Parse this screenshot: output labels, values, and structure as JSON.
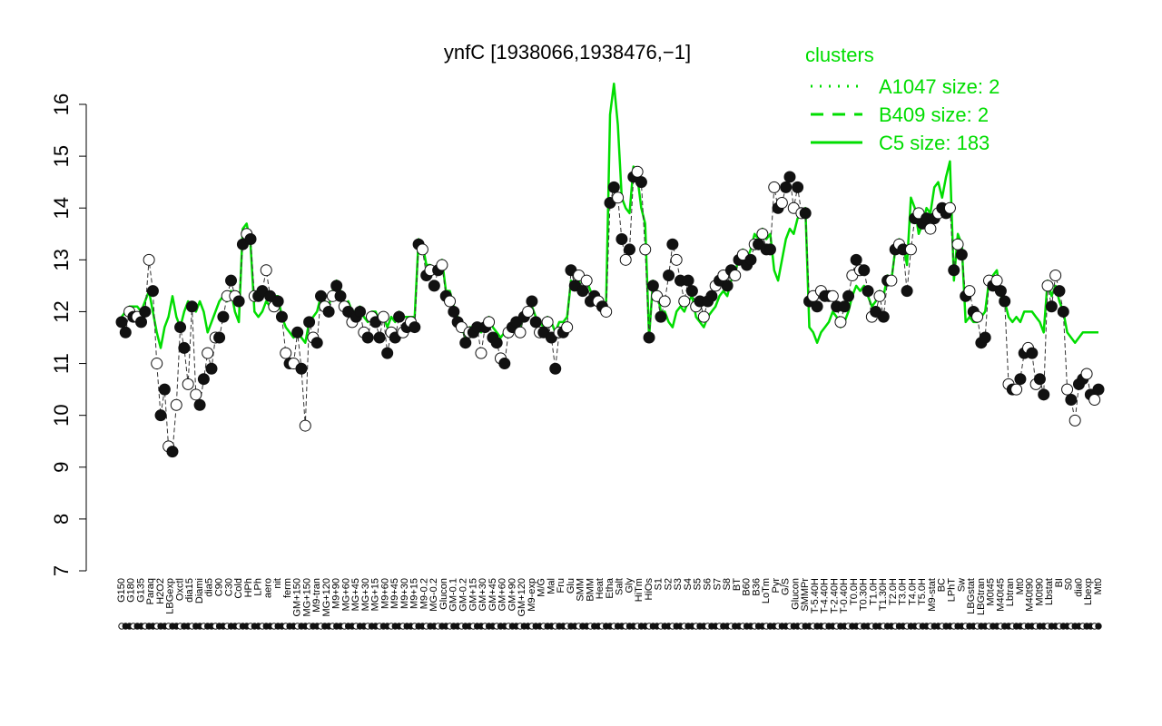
{
  "chart_data": {
    "type": "line",
    "title": "ynfC [1938066,1938476,−1]",
    "ylim": [
      7,
      16.4
    ],
    "yticks": [
      7,
      8,
      9,
      10,
      11,
      12,
      13,
      14,
      15,
      16
    ],
    "x_tick_labels": [
      "G150",
      "G180",
      "G135",
      "Paraq",
      "H2O2",
      "LBGexp",
      "Oxctl",
      "dia15",
      "Diami",
      "dia5",
      "C90",
      "C30",
      "Cold",
      "HPh",
      "LPh",
      "aero",
      "nit",
      "ferm",
      "GM+150",
      "MG+150",
      "M9-tran",
      "MG+120",
      "M9+90",
      "MG+60",
      "MG+45",
      "MG+30",
      "MG+15",
      "M9+60",
      "M9+45",
      "M9+30",
      "M9+15",
      "M9-0.2",
      "MG-0.2",
      "Glucon",
      "GM-0.1",
      "GM-0.2",
      "GM+15",
      "GM+30",
      "GM+45",
      "GM+60",
      "GM+90",
      "GM+120",
      "M9-exp",
      "M/G",
      "Mal",
      "Fru",
      "Glu",
      "SMM",
      "BMM",
      "Heat",
      "Etha",
      "Salt",
      "Gly",
      "HiTm",
      "HiOs",
      "S1",
      "S2",
      "S3",
      "S4",
      "S5",
      "S6",
      "S7",
      "S8",
      "BT",
      "B60",
      "B36",
      "LoTm",
      "Pyr",
      "G/S",
      "Glucon",
      "SMMPr",
      "T-5.40H",
      "T-4.40H",
      "T-2.40H",
      "T-0.40H",
      "T0.0H",
      "T0.30H",
      "T1.0H",
      "T1.30H",
      "T2.0H",
      "T3.0H",
      "T4.0H",
      "T5.0H",
      "M9-stat",
      "BC",
      "LPhT",
      "Sw",
      "LBGstat",
      "LBGtran",
      "M0t45",
      "M40t45",
      "Lbtran",
      "Mt0",
      "M40t90",
      "M0t90",
      "Lbstat",
      "BI",
      "S0",
      "dia0",
      "Lbexp",
      "Mt0"
    ],
    "legend": {
      "title": "clusters",
      "placement": "top-right",
      "entries": [
        {
          "label": "A1047 size: 2",
          "style": "dotted"
        },
        {
          "label": "B409 size: 2",
          "style": "dashed"
        },
        {
          "label": "C5 size: 183",
          "style": "solid"
        }
      ]
    },
    "series": [
      {
        "role": "highlight",
        "style": "dashed",
        "color": "#333333",
        "values": [
          11.8,
          11.6,
          12.0,
          11.9,
          11.9,
          11.8,
          12.0,
          13.0,
          12.4,
          11.0,
          10.0,
          10.5,
          9.4,
          9.3,
          10.2,
          11.7,
          11.3,
          10.6,
          12.1,
          10.4,
          10.2,
          10.7,
          11.2,
          10.9,
          11.5,
          11.5,
          11.9,
          12.3,
          12.6,
          12.3,
          12.2,
          13.3,
          13.5,
          13.4,
          12.3,
          12.3,
          12.4,
          12.8,
          12.3,
          12.1,
          12.2,
          11.9,
          11.2,
          11.0,
          11.0,
          11.6,
          10.9,
          9.8,
          11.8,
          11.5,
          11.4,
          12.3,
          12.1,
          12.0,
          12.3,
          12.5,
          12.3,
          12.1,
          12.0,
          11.8,
          11.9,
          12.0,
          11.6,
          11.5,
          11.9,
          11.8,
          11.5,
          11.9,
          11.2,
          11.6,
          11.5,
          11.9,
          11.6,
          11.7,
          11.8,
          11.7,
          13.3,
          13.2,
          12.7,
          12.8,
          12.5,
          12.8,
          12.9,
          12.3,
          12.2,
          12.0,
          11.8,
          11.7,
          11.4,
          11.6,
          11.6,
          11.7,
          11.2,
          11.7,
          11.8,
          11.5,
          11.4,
          11.1,
          11.0,
          11.6,
          11.7,
          11.8,
          11.6,
          11.9,
          12.0,
          12.2,
          11.8,
          11.6,
          11.6,
          11.8,
          11.5,
          10.9,
          11.6,
          11.6,
          11.7,
          12.8,
          12.5,
          12.7,
          12.4,
          12.6,
          12.2,
          12.3,
          12.2,
          12.1,
          12.0,
          14.1,
          14.4,
          14.2,
          13.4,
          13.0,
          13.2,
          14.6,
          14.7,
          14.5,
          13.2,
          11.5,
          12.5,
          12.3,
          11.9,
          12.2,
          12.7,
          13.3,
          13.0,
          12.6,
          12.2,
          12.6,
          12.4,
          12.1,
          12.2,
          11.9,
          12.2,
          12.3,
          12.5,
          12.6,
          12.7,
          12.5,
          12.8,
          12.7,
          13.0,
          13.1,
          12.9,
          13.0,
          13.3,
          13.3,
          13.5,
          13.2,
          13.2,
          14.4,
          14.0,
          14.1,
          14.4,
          14.6,
          14.0,
          14.4,
          13.9,
          13.9,
          12.2,
          12.3,
          12.1,
          12.4,
          12.3,
          12.3,
          12.3,
          12.1,
          11.8,
          12.1,
          12.3,
          12.7,
          13.0,
          12.8,
          12.8,
          12.4,
          11.9,
          12.0,
          12.3,
          11.9,
          12.6,
          12.6,
          13.2,
          13.3,
          13.2,
          12.4,
          13.2,
          13.8,
          13.9,
          13.7,
          13.8,
          13.6,
          13.8,
          13.9,
          14.0,
          13.9,
          14.0,
          12.8,
          13.3,
          13.1,
          12.3,
          12.4,
          12.0,
          11.9,
          11.4,
          11.5,
          12.6,
          12.5,
          12.6,
          12.4,
          12.2,
          10.6,
          10.5,
          10.5,
          10.7,
          11.2,
          11.3,
          11.2,
          10.6,
          10.7,
          10.4,
          12.5,
          12.1,
          12.7,
          12.4,
          12.0,
          10.5,
          10.3,
          9.9,
          10.6,
          10.7,
          10.8,
          10.4,
          10.3,
          10.5
        ]
      },
      {
        "role": "cluster",
        "name": "C5 size: 183",
        "style": "solid",
        "color": "#00dd00",
        "values": [
          11.9,
          12.0,
          12.1,
          12.1,
          12.1,
          12.0,
          12.2,
          12.4,
          12.0,
          11.6,
          11.3,
          11.7,
          11.9,
          12.3,
          11.9,
          11.7,
          12.0,
          12.2,
          12.1,
          12.0,
          12.2,
          12.0,
          11.6,
          11.8,
          12.0,
          12.2,
          12.3,
          12.2,
          12.4,
          12.0,
          11.8,
          13.6,
          13.7,
          13.3,
          12.0,
          11.9,
          12.0,
          12.2,
          12.1,
          12.3,
          12.3,
          11.9,
          11.7,
          11.6,
          11.5,
          11.6,
          11.5,
          11.4,
          11.8,
          11.9,
          12.0,
          12.3,
          12.2,
          12.1,
          12.4,
          12.6,
          12.4,
          12.1,
          12.2,
          12.0,
          12.0,
          12.1,
          11.9,
          11.8,
          12.0,
          12.0,
          11.8,
          11.9,
          11.7,
          11.9,
          11.8,
          12.0,
          11.9,
          11.9,
          11.9,
          11.9,
          13.4,
          13.3,
          12.9,
          12.9,
          12.8,
          12.9,
          13.0,
          12.4,
          12.4,
          12.1,
          11.9,
          11.7,
          11.5,
          11.7,
          11.7,
          11.7,
          11.6,
          11.8,
          11.9,
          11.7,
          11.6,
          11.5,
          11.6,
          11.7,
          11.8,
          11.8,
          11.7,
          11.9,
          12.0,
          12.1,
          11.9,
          11.8,
          11.7,
          11.9,
          11.8,
          11.6,
          11.8,
          11.8,
          11.9,
          12.6,
          12.5,
          12.6,
          12.4,
          12.6,
          12.4,
          12.3,
          12.2,
          12.1,
          12.2,
          15.8,
          16.4,
          15.6,
          14.2,
          14.0,
          13.9,
          14.8,
          14.6,
          14.0,
          13.7,
          11.5,
          12.6,
          12.4,
          12.0,
          12.0,
          11.8,
          11.7,
          12.0,
          12.1,
          12.0,
          12.2,
          12.3,
          11.9,
          11.8,
          11.7,
          11.9,
          12.0,
          12.1,
          12.3,
          12.4,
          12.3,
          12.6,
          12.7,
          13.1,
          13.2,
          13.0,
          13.2,
          13.5,
          13.4,
          13.6,
          13.4,
          13.5,
          12.8,
          12.6,
          13.0,
          13.4,
          13.6,
          13.5,
          13.8,
          13.9,
          14.0,
          11.7,
          11.6,
          11.4,
          11.6,
          11.7,
          11.8,
          12.0,
          11.9,
          11.7,
          11.8,
          12.0,
          12.3,
          12.5,
          12.4,
          12.5,
          12.3,
          12.1,
          12.2,
          12.4,
          12.3,
          12.7,
          12.6,
          13.2,
          13.4,
          13.3,
          12.9,
          14.2,
          14.0,
          13.5,
          13.7,
          14.0,
          13.9,
          14.4,
          14.5,
          14.2,
          14.6,
          14.9,
          12.6,
          13.5,
          13.3,
          11.8,
          11.9,
          11.8,
          11.8,
          11.9,
          12.0,
          12.6,
          12.7,
          12.8,
          12.3,
          12.2,
          11.9,
          11.8,
          11.9,
          11.8,
          12.0,
          12.0,
          12.0,
          11.9,
          11.8,
          11.6,
          12.6,
          12.3,
          12.5,
          12.2,
          12.0,
          11.6,
          11.5,
          11.4,
          11.5,
          11.6,
          11.6,
          11.6,
          11.6,
          11.6
        ]
      }
    ]
  }
}
